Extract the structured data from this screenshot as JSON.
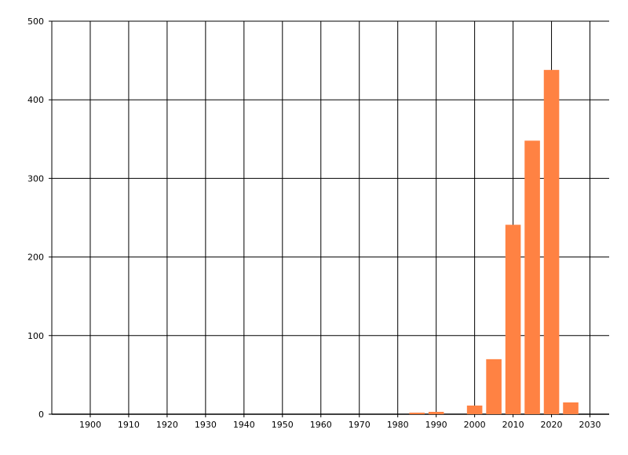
{
  "chart_data": {
    "type": "bar",
    "title": "",
    "xlabel": "",
    "ylabel": "",
    "xlim": [
      1890,
      2035
    ],
    "ylim": [
      0,
      500
    ],
    "grid": true,
    "bar_color": "#ff8243",
    "x_ticks": [
      1900,
      1910,
      1920,
      1930,
      1940,
      1950,
      1960,
      1970,
      1980,
      1990,
      2000,
      2010,
      2020,
      2030
    ],
    "y_ticks": [
      0,
      100,
      200,
      300,
      400,
      500
    ],
    "x": [
      1985,
      1990,
      2000,
      2005,
      2010,
      2015,
      2020,
      2025
    ],
    "values": [
      2,
      3,
      11,
      70,
      241,
      348,
      438,
      15
    ]
  }
}
